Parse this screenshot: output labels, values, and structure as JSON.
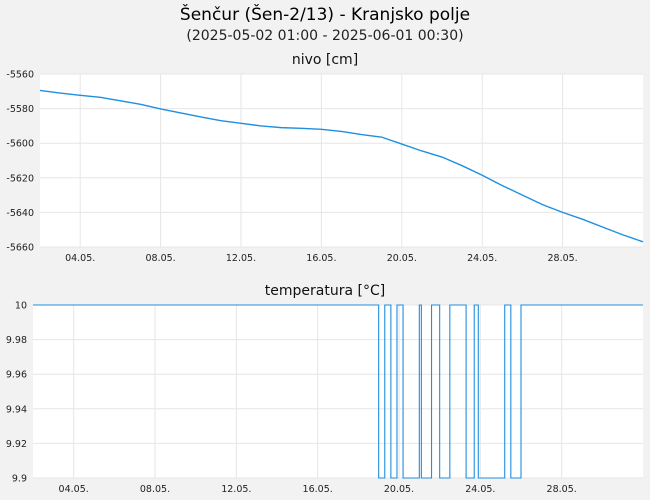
{
  "header": {
    "title": "Šenčur (Šen-2/13) - Kranjsko polje",
    "subtitle": "(2025-05-02 01:00 - 2025-06-01 00:30)"
  },
  "colors": {
    "series": "#1f8fe0",
    "background": "#f2f2f2",
    "plot": "#ffffff",
    "grid": "#e6e6e6"
  },
  "chart_data": [
    {
      "type": "line",
      "title": "nivo [cm]",
      "grid": true,
      "ylim": [
        -5660,
        -5560
      ],
      "yticks": [
        -5560,
        -5580,
        -5600,
        -5620,
        -5640,
        -5660
      ],
      "ytick_labels": [
        "-5560",
        "-5580",
        "-5600",
        "-5620",
        "-5640",
        "-5660"
      ],
      "xlim": [
        "2025-05-02",
        "2025-06-01"
      ],
      "xticks": [
        "2025-05-04",
        "2025-05-08",
        "2025-05-12",
        "2025-05-16",
        "2025-05-20",
        "2025-05-24",
        "2025-05-28"
      ],
      "xtick_labels": [
        "04.05.",
        "08.05.",
        "12.05.",
        "16.05.",
        "20.05.",
        "24.05.",
        "28.05."
      ],
      "series": [
        {
          "x": [
            "2025-05-02",
            "2025-05-03",
            "2025-05-04",
            "2025-05-05",
            "2025-05-06",
            "2025-05-07",
            "2025-05-08",
            "2025-05-09",
            "2025-05-10",
            "2025-05-11",
            "2025-05-12",
            "2025-05-13",
            "2025-05-14",
            "2025-05-15",
            "2025-05-16",
            "2025-05-17",
            "2025-05-18",
            "2025-05-19",
            "2025-05-20",
            "2025-05-21",
            "2025-05-22",
            "2025-05-23",
            "2025-05-24",
            "2025-05-25",
            "2025-05-26",
            "2025-05-27",
            "2025-05-28",
            "2025-05-29",
            "2025-05-30",
            "2025-05-31",
            "2025-06-01"
          ],
          "y": [
            -5569.5,
            -5571,
            -5572.3,
            -5573.5,
            -5575.5,
            -5577.5,
            -5580.2,
            -5582.5,
            -5584.8,
            -5587,
            -5588.5,
            -5590,
            -5591,
            -5591.4,
            -5592,
            -5593.2,
            -5595,
            -5596.5,
            -5600.5,
            -5604.5,
            -5608,
            -5613,
            -5618.5,
            -5624.5,
            -5630,
            -5635.5,
            -5640,
            -5644,
            -5648.5,
            -5653,
            -5657
          ]
        }
      ]
    },
    {
      "type": "line",
      "title": "temperatura [°C]",
      "grid": true,
      "ylim": [
        9.9,
        10
      ],
      "yticks": [
        10,
        9.98,
        9.96,
        9.94,
        9.92,
        9.9
      ],
      "ytick_labels": [
        "10",
        "9.98",
        "9.96",
        "9.94",
        "9.92",
        "9.9"
      ],
      "xlim": [
        "2025-05-02",
        "2025-06-01"
      ],
      "xticks": [
        "2025-05-04",
        "2025-05-08",
        "2025-05-12",
        "2025-05-16",
        "2025-05-20",
        "2025-05-24",
        "2025-05-28"
      ],
      "xtick_labels": [
        "04.05.",
        "08.05.",
        "12.05.",
        "16.05.",
        "20.05.",
        "24.05.",
        "28.05."
      ],
      "series": [
        {
          "x": [
            "2025-05-02",
            "2025-05-19",
            "2025-05-19",
            "2025-05-19.3",
            "2025-05-19.3",
            "2025-05-19.6",
            "2025-05-19.6",
            "2025-05-19.9",
            "2025-05-19.9",
            "2025-05-20.2",
            "2025-05-20.2",
            "2025-05-21",
            "2025-05-21",
            "2025-05-21.1",
            "2025-05-21.1",
            "2025-05-21.6",
            "2025-05-21.6",
            "2025-05-22",
            "2025-05-22",
            "2025-05-22.5",
            "2025-05-22.5",
            "2025-05-23.3",
            "2025-05-23.3",
            "2025-05-23.7",
            "2025-05-23.7",
            "2025-05-23.9",
            "2025-05-23.9",
            "2025-05-25.2",
            "2025-05-25.2",
            "2025-05-25.5",
            "2025-05-25.5",
            "2025-05-26",
            "2025-05-26",
            "2025-06-01"
          ],
          "y": [
            10,
            10,
            9.9,
            9.9,
            10,
            10,
            9.9,
            9.9,
            10,
            10,
            9.9,
            9.9,
            10,
            10,
            9.9,
            9.9,
            10,
            10,
            9.9,
            9.9,
            10,
            10,
            9.9,
            9.9,
            10,
            10,
            9.9,
            9.9,
            10,
            10,
            9.9,
            9.9,
            10,
            10
          ]
        }
      ]
    }
  ]
}
